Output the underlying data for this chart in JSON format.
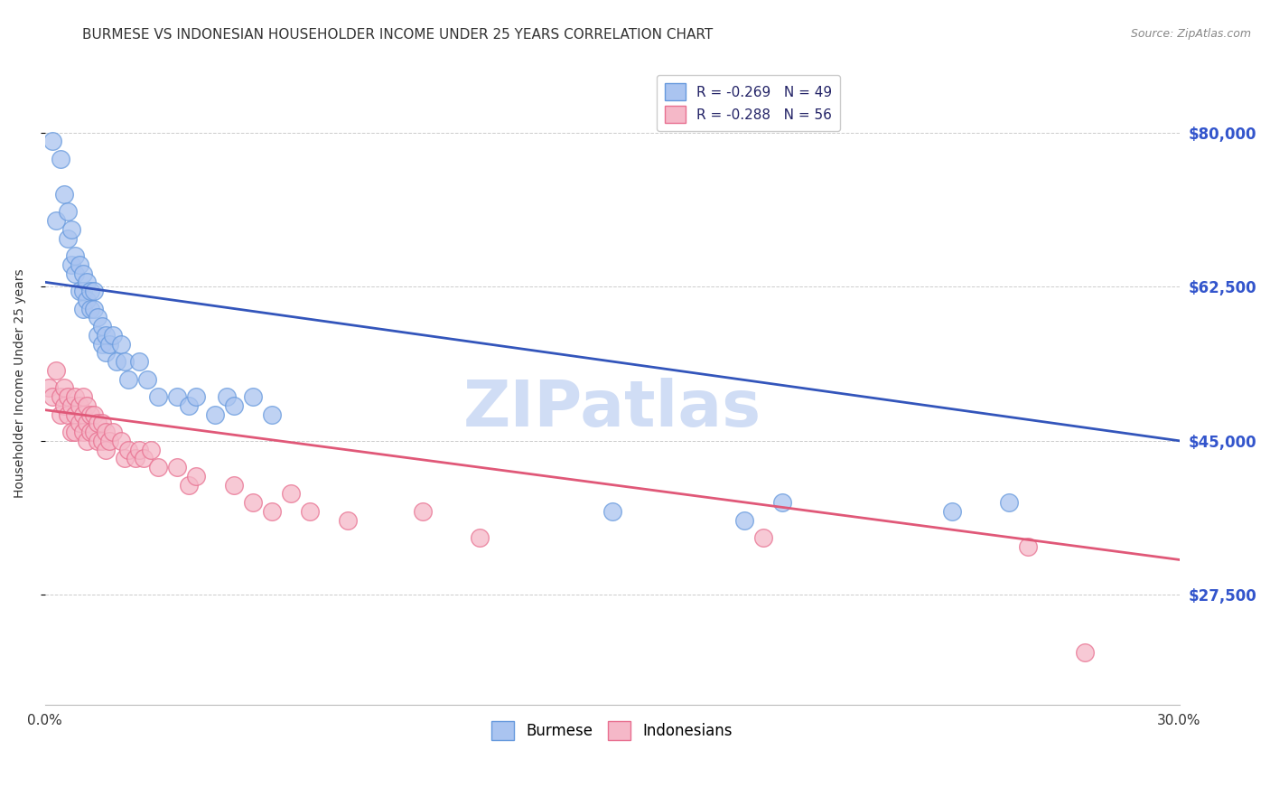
{
  "title": "BURMESE VS INDONESIAN HOUSEHOLDER INCOME UNDER 25 YEARS CORRELATION CHART",
  "source": "Source: ZipAtlas.com",
  "ylabel": "Householder Income Under 25 years",
  "xlim": [
    0.0,
    0.3
  ],
  "ylim": [
    15000,
    88000
  ],
  "yticks": [
    27500,
    45000,
    62500,
    80000
  ],
  "ytick_labels": [
    "$27,500",
    "$45,000",
    "$62,500",
    "$80,000"
  ],
  "burmese_R": "-0.269",
  "burmese_N": "49",
  "indonesian_R": "-0.288",
  "indonesian_N": "56",
  "burmese_color": "#aac4f0",
  "burmese_edge_color": "#6699dd",
  "indonesian_color": "#f5b8c8",
  "indonesian_edge_color": "#e87090",
  "burmese_line_color": "#3355bb",
  "indonesian_line_color": "#e05878",
  "burmese_x": [
    0.002,
    0.003,
    0.004,
    0.005,
    0.006,
    0.006,
    0.007,
    0.007,
    0.008,
    0.008,
    0.009,
    0.009,
    0.01,
    0.01,
    0.01,
    0.011,
    0.011,
    0.012,
    0.012,
    0.013,
    0.013,
    0.014,
    0.014,
    0.015,
    0.015,
    0.016,
    0.016,
    0.017,
    0.018,
    0.019,
    0.02,
    0.021,
    0.022,
    0.025,
    0.027,
    0.03,
    0.035,
    0.038,
    0.04,
    0.045,
    0.048,
    0.05,
    0.055,
    0.06,
    0.15,
    0.185,
    0.195,
    0.24,
    0.255
  ],
  "burmese_y": [
    79000,
    70000,
    77000,
    73000,
    71000,
    68000,
    69000,
    65000,
    66000,
    64000,
    65000,
    62000,
    64000,
    62000,
    60000,
    63000,
    61000,
    62000,
    60000,
    62000,
    60000,
    57000,
    59000,
    58000,
    56000,
    57000,
    55000,
    56000,
    57000,
    54000,
    56000,
    54000,
    52000,
    54000,
    52000,
    50000,
    50000,
    49000,
    50000,
    48000,
    50000,
    49000,
    50000,
    48000,
    37000,
    36000,
    38000,
    37000,
    38000
  ],
  "indonesian_x": [
    0.001,
    0.002,
    0.003,
    0.004,
    0.004,
    0.005,
    0.005,
    0.006,
    0.006,
    0.007,
    0.007,
    0.008,
    0.008,
    0.008,
    0.009,
    0.009,
    0.01,
    0.01,
    0.01,
    0.011,
    0.011,
    0.011,
    0.012,
    0.012,
    0.013,
    0.013,
    0.014,
    0.014,
    0.015,
    0.015,
    0.016,
    0.016,
    0.017,
    0.018,
    0.02,
    0.021,
    0.022,
    0.024,
    0.025,
    0.026,
    0.028,
    0.03,
    0.035,
    0.038,
    0.04,
    0.05,
    0.055,
    0.06,
    0.065,
    0.07,
    0.08,
    0.1,
    0.115,
    0.19,
    0.26,
    0.275
  ],
  "indonesian_y": [
    51000,
    50000,
    53000,
    50000,
    48000,
    51000,
    49000,
    50000,
    48000,
    49000,
    46000,
    50000,
    48000,
    46000,
    49000,
    47000,
    50000,
    48000,
    46000,
    49000,
    47000,
    45000,
    48000,
    46000,
    48000,
    46000,
    47000,
    45000,
    47000,
    45000,
    46000,
    44000,
    45000,
    46000,
    45000,
    43000,
    44000,
    43000,
    44000,
    43000,
    44000,
    42000,
    42000,
    40000,
    41000,
    40000,
    38000,
    37000,
    39000,
    37000,
    36000,
    37000,
    34000,
    34000,
    33000,
    21000
  ],
  "burmese_trend_x": [
    0.0,
    0.3
  ],
  "burmese_trend_y": [
    63000,
    45000
  ],
  "indonesian_trend_x": [
    0.0,
    0.3
  ],
  "indonesian_trend_y": [
    48500,
    31500
  ],
  "background_color": "#ffffff",
  "grid_color": "#cccccc",
  "watermark": "ZIPatlas",
  "watermark_color": "#d0ddf5",
  "watermark_fontsize": 52,
  "title_fontsize": 11,
  "legend_text_color": "#222266"
}
